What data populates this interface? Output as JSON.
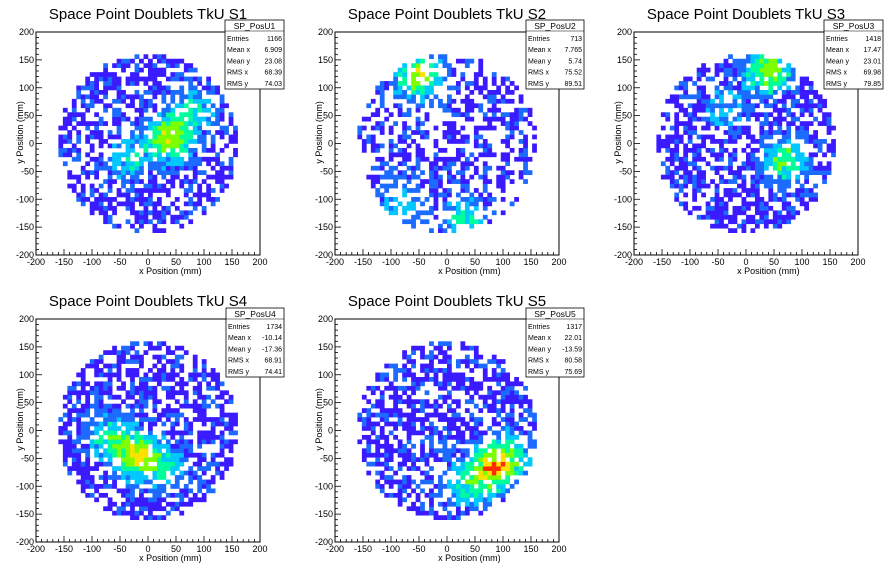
{
  "chart_data": [
    {
      "type": "heatmap",
      "title": "Space Point Doublets TkU S1",
      "xlabel": "x Position (mm)",
      "ylabel": "y Position (mm)",
      "xlim": [
        -200,
        200
      ],
      "ylim": [
        -200,
        200
      ],
      "xticks": [
        "-200",
        "-150",
        "-100",
        "-50",
        "0",
        "50",
        "100",
        "150",
        "200"
      ],
      "yticks": [
        "-200",
        "-150",
        "-100",
        "-50",
        "0",
        "50",
        "100",
        "150",
        "200"
      ],
      "stats": {
        "name": "SP_PosU1",
        "rows": [
          {
            "label": "Entries",
            "value": "1166"
          },
          {
            "label": "Mean x",
            "value": "6.909"
          },
          {
            "label": "Mean y",
            "value": "23.08"
          },
          {
            "label": "RMS x",
            "value": "68.39"
          },
          {
            "label": "RMS y",
            "value": "74.03"
          }
        ]
      },
      "entries": 1166,
      "mean_x": 6.909,
      "mean_y": 23.08,
      "rms_x": 68.39,
      "rms_y": 74.03,
      "radius": 160,
      "hotspots": [
        {
          "x": 40,
          "y": 10,
          "weight": 1.0
        },
        {
          "x": 80,
          "y": 60,
          "weight": 0.5
        },
        {
          "x": -30,
          "y": -30,
          "weight": 0.5
        }
      ],
      "colormap": [
        "#3a1aff",
        "#1c6bff",
        "#00c8ff",
        "#00ff9a",
        "#7cff00",
        "#ffe000",
        "#ff2a00"
      ]
    },
    {
      "type": "heatmap",
      "title": "Space Point Doublets TkU S2",
      "xlabel": "x Position (mm)",
      "ylabel": "y Position (mm)",
      "xlim": [
        -200,
        200
      ],
      "ylim": [
        -200,
        200
      ],
      "xticks": [
        "-200",
        "-150",
        "-100",
        "-50",
        "0",
        "50",
        "100",
        "150",
        "200"
      ],
      "yticks": [
        "-200",
        "-150",
        "-100",
        "-50",
        "0",
        "50",
        "100",
        "150",
        "200"
      ],
      "stats": {
        "name": "SP_PosU2",
        "rows": [
          {
            "label": "Entries",
            "value": "713"
          },
          {
            "label": "Mean x",
            "value": "7.765"
          },
          {
            "label": "Mean y",
            "value": "5.74"
          },
          {
            "label": "RMS x",
            "value": "75.52"
          },
          {
            "label": "RMS y",
            "value": "89.51"
          }
        ]
      },
      "entries": 713,
      "mean_x": 7.765,
      "mean_y": 5.74,
      "rms_x": 75.52,
      "rms_y": 89.51,
      "radius": 160,
      "hotspots": [
        {
          "x": -50,
          "y": 120,
          "weight": 1.0
        },
        {
          "x": 30,
          "y": -140,
          "weight": 0.6
        },
        {
          "x": -80,
          "y": -110,
          "weight": 0.5
        }
      ],
      "colormap": [
        "#3a1aff",
        "#1c6bff",
        "#00c8ff",
        "#00ff9a",
        "#7cff00",
        "#ffe000",
        "#ff2a00"
      ]
    },
    {
      "type": "heatmap",
      "title": "Space Point Doublets TkU S3",
      "xlabel": "x Position (mm)",
      "ylabel": "y Position (mm)",
      "xlim": [
        -200,
        200
      ],
      "ylim": [
        -200,
        200
      ],
      "xticks": [
        "-200",
        "-150",
        "-100",
        "-50",
        "0",
        "50",
        "100",
        "150",
        "200"
      ],
      "yticks": [
        "-200",
        "-150",
        "-100",
        "-50",
        "0",
        "50",
        "100",
        "150",
        "200"
      ],
      "stats": {
        "name": "SP_PosU3",
        "rows": [
          {
            "label": "Entries",
            "value": "1418"
          },
          {
            "label": "Mean x",
            "value": "17.47"
          },
          {
            "label": "Mean y",
            "value": "23.01"
          },
          {
            "label": "RMS x",
            "value": "69.98"
          },
          {
            "label": "RMS y",
            "value": "79.85"
          }
        ]
      },
      "entries": 1418,
      "mean_x": 17.47,
      "mean_y": 23.01,
      "rms_x": 69.98,
      "rms_y": 79.85,
      "radius": 160,
      "hotspots": [
        {
          "x": 40,
          "y": 130,
          "weight": 1.0
        },
        {
          "x": 70,
          "y": -30,
          "weight": 0.8
        },
        {
          "x": -40,
          "y": 60,
          "weight": 0.4
        }
      ],
      "colormap": [
        "#3a1aff",
        "#1c6bff",
        "#00c8ff",
        "#00ff9a",
        "#7cff00",
        "#ffe000",
        "#ff2a00"
      ]
    },
    {
      "type": "heatmap",
      "title": "Space Point Doublets TkU S4",
      "xlabel": "x Position (mm)",
      "ylabel": "y Position (mm)",
      "xlim": [
        -200,
        200
      ],
      "ylim": [
        -200,
        200
      ],
      "xticks": [
        "-200",
        "-150",
        "-100",
        "-50",
        "0",
        "50",
        "100",
        "150",
        "200"
      ],
      "yticks": [
        "-200",
        "-150",
        "-100",
        "-50",
        "0",
        "50",
        "100",
        "150",
        "200"
      ],
      "stats": {
        "name": "SP_PosU4",
        "rows": [
          {
            "label": "Entries",
            "value": "1734"
          },
          {
            "label": "Mean x",
            "value": "-10.14"
          },
          {
            "label": "Mean y",
            "value": "-17.36"
          },
          {
            "label": "RMS x",
            "value": "68.91"
          },
          {
            "label": "RMS y",
            "value": "74.41"
          }
        ]
      },
      "entries": 1734,
      "mean_x": -10.14,
      "mean_y": -17.36,
      "rms_x": 68.91,
      "rms_y": 74.41,
      "radius": 160,
      "hotspots": [
        {
          "x": -20,
          "y": -45,
          "weight": 1.0
        },
        {
          "x": -70,
          "y": -10,
          "weight": 0.6
        },
        {
          "x": 30,
          "y": -70,
          "weight": 0.5
        }
      ],
      "colormap": [
        "#3a1aff",
        "#1c6bff",
        "#00c8ff",
        "#00ff9a",
        "#7cff00",
        "#ffe000",
        "#ff2a00"
      ]
    },
    {
      "type": "heatmap",
      "title": "Space Point Doublets TkU S5",
      "xlabel": "x Position (mm)",
      "ylabel": "y Position (mm)",
      "xlim": [
        -200,
        200
      ],
      "ylim": [
        -200,
        200
      ],
      "xticks": [
        "-200",
        "-150",
        "-100",
        "-50",
        "0",
        "50",
        "100",
        "150",
        "200"
      ],
      "yticks": [
        "-200",
        "-150",
        "-100",
        "-50",
        "0",
        "50",
        "100",
        "150",
        "200"
      ],
      "stats": {
        "name": "SP_PosU5",
        "rows": [
          {
            "label": "Entries",
            "value": "1317"
          },
          {
            "label": "Mean x",
            "value": "22.01"
          },
          {
            "label": "Mean y",
            "value": "-13.59"
          },
          {
            "label": "RMS x",
            "value": "80.58"
          },
          {
            "label": "RMS y",
            "value": "75.69"
          }
        ]
      },
      "entries": 1317,
      "mean_x": 22.01,
      "mean_y": -13.59,
      "rms_x": 80.58,
      "rms_y": 75.69,
      "radius": 160,
      "hotspots": [
        {
          "x": 80,
          "y": -70,
          "weight": 1.0
        },
        {
          "x": 110,
          "y": -40,
          "weight": 0.6
        },
        {
          "x": 30,
          "y": -100,
          "weight": 0.5
        }
      ],
      "colormap": [
        "#3a1aff",
        "#1c6bff",
        "#00c8ff",
        "#00ff9a",
        "#7cff00",
        "#ffe000",
        "#ff2a00"
      ]
    }
  ]
}
